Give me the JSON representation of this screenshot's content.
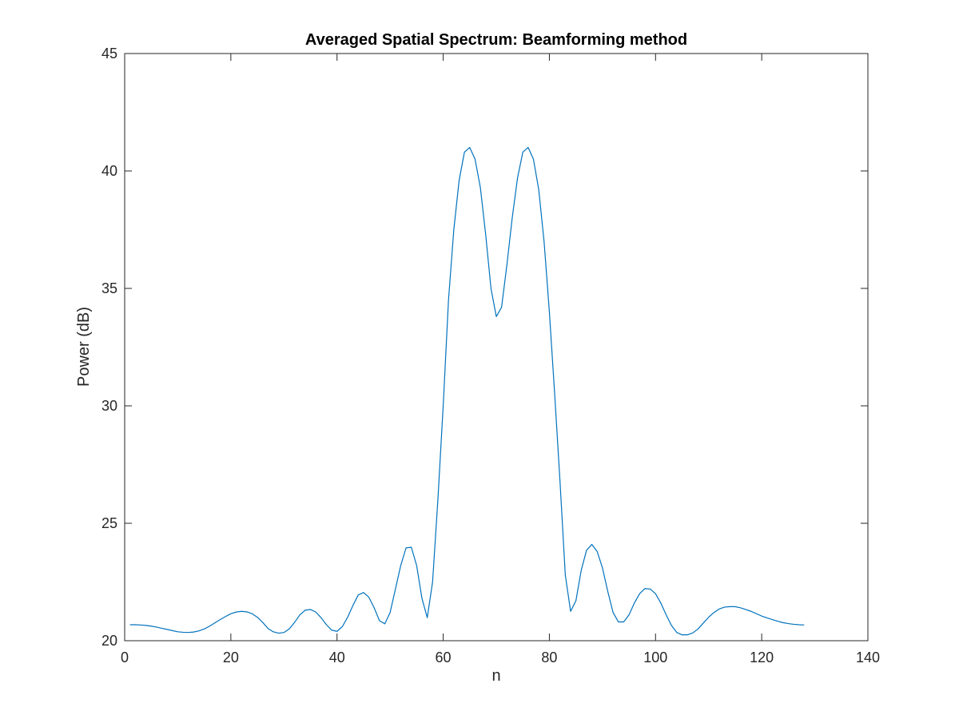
{
  "chart_data": {
    "type": "line",
    "title": "Averaged Spatial Spectrum: Beamforming method",
    "xlabel": "n",
    "ylabel": "Power (dB)",
    "xlim": [
      0,
      140
    ],
    "ylim": [
      20,
      45
    ],
    "xticks": [
      0,
      20,
      40,
      60,
      80,
      100,
      120,
      140
    ],
    "yticks": [
      20,
      25,
      30,
      35,
      40,
      45
    ],
    "grid": false,
    "box": true,
    "series": [
      {
        "color": "#0072bd",
        "x": [
          1,
          2,
          3,
          4,
          5,
          6,
          7,
          8,
          9,
          10,
          11,
          12,
          13,
          14,
          15,
          16,
          17,
          18,
          19,
          20,
          21,
          22,
          23,
          24,
          25,
          26,
          27,
          28,
          29,
          30,
          31,
          32,
          33,
          34,
          35,
          36,
          37,
          38,
          39,
          40,
          41,
          42,
          43,
          44,
          45,
          46,
          47,
          48,
          49,
          50,
          51,
          52,
          53,
          54,
          55,
          56,
          57,
          58,
          59,
          60,
          61,
          62,
          63,
          64,
          65,
          66,
          67,
          68,
          69,
          70,
          71,
          72,
          73,
          74,
          75,
          76,
          77,
          78,
          79,
          80,
          81,
          82,
          83,
          84,
          85,
          86,
          87,
          88,
          89,
          90,
          91,
          92,
          93,
          94,
          95,
          96,
          97,
          98,
          99,
          100,
          101,
          102,
          103,
          104,
          105,
          106,
          107,
          108,
          109,
          110,
          111,
          112,
          113,
          114,
          115,
          116,
          117,
          118,
          119,
          120,
          121,
          122,
          123,
          124,
          125,
          126,
          127,
          128
        ],
        "values": [
          20.68,
          20.68,
          20.67,
          20.65,
          20.62,
          20.58,
          20.53,
          20.48,
          20.43,
          20.38,
          20.36,
          20.35,
          20.37,
          20.42,
          20.5,
          20.62,
          20.76,
          20.9,
          21.03,
          21.15,
          21.22,
          21.25,
          21.23,
          21.15,
          21.0,
          20.78,
          20.52,
          20.38,
          20.32,
          20.35,
          20.5,
          20.78,
          21.1,
          21.3,
          21.33,
          21.22,
          20.98,
          20.68,
          20.45,
          20.4,
          20.6,
          21.0,
          21.5,
          21.95,
          22.05,
          21.85,
          21.4,
          20.85,
          20.72,
          21.2,
          22.2,
          23.2,
          23.95,
          23.98,
          23.2,
          21.8,
          20.98,
          22.5,
          26.0,
          30.0,
          34.5,
          37.5,
          39.6,
          40.8,
          41.0,
          40.5,
          39.3,
          37.3,
          35.0,
          33.8,
          34.2,
          36.0,
          38.0,
          39.7,
          40.8,
          41.0,
          40.5,
          39.2,
          37.0,
          34.0,
          30.5,
          26.8,
          22.8,
          21.25,
          21.7,
          23.0,
          23.85,
          24.1,
          23.8,
          23.1,
          22.1,
          21.2,
          20.8,
          20.8,
          21.1,
          21.6,
          22.0,
          22.22,
          22.2,
          22.0,
          21.6,
          21.1,
          20.65,
          20.35,
          20.25,
          20.25,
          20.33,
          20.5,
          20.75,
          21.0,
          21.2,
          21.35,
          21.43,
          21.45,
          21.45,
          21.4,
          21.33,
          21.25,
          21.15,
          21.05,
          20.97,
          20.9,
          20.83,
          20.77,
          20.73,
          20.7,
          20.68,
          20.67
        ]
      }
    ]
  }
}
